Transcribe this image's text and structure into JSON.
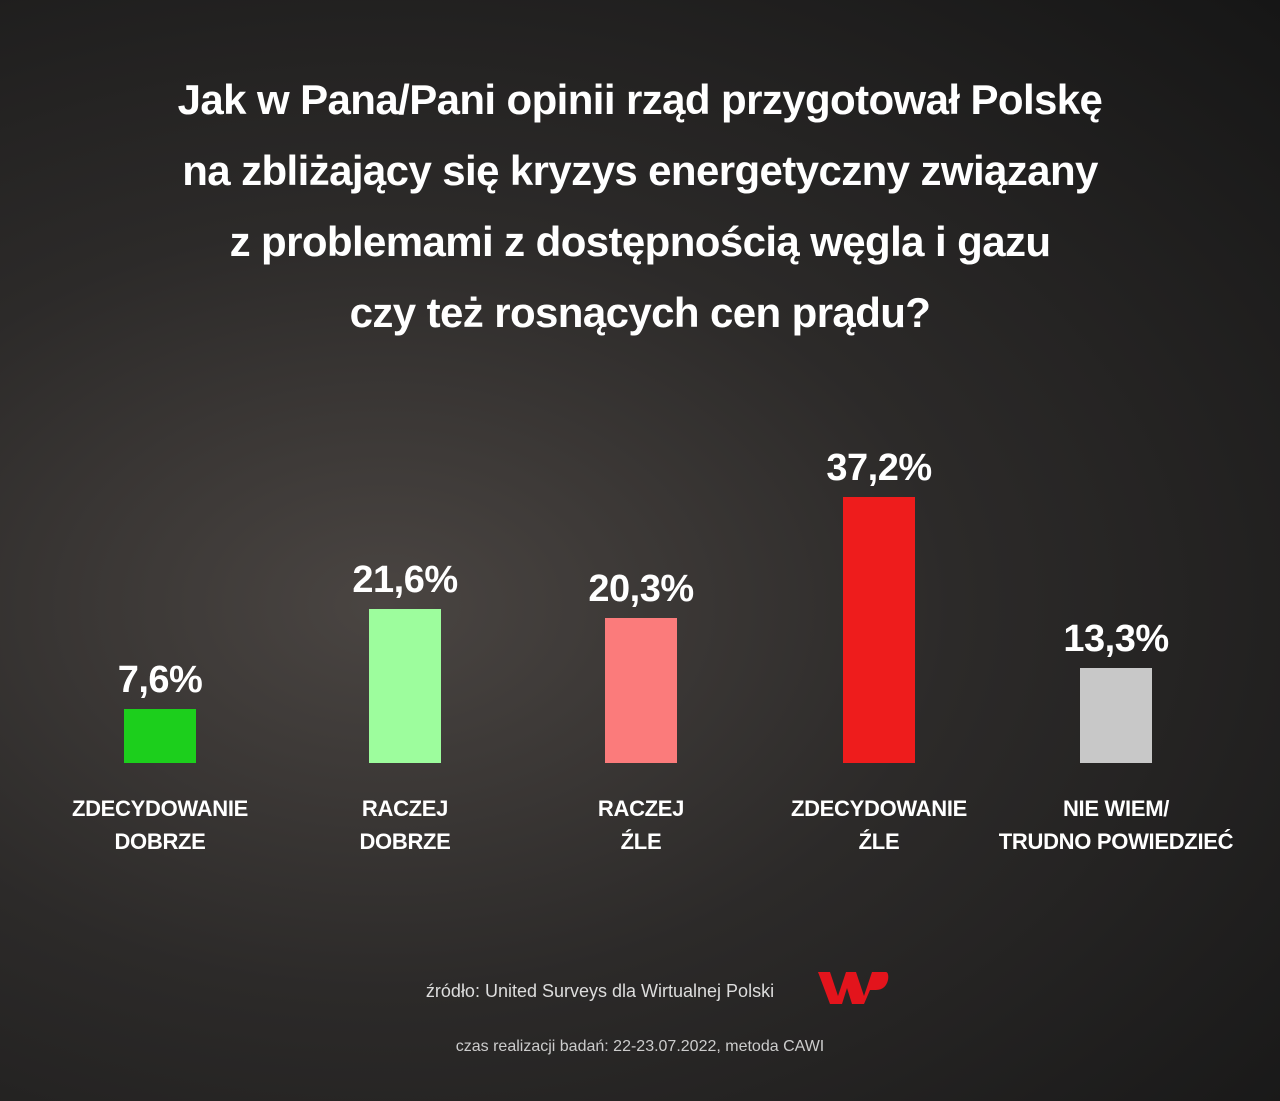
{
  "chart_data": {
    "type": "bar",
    "title": "Jak w Pana/Pani opinii rząd przygotował Polskę\nna zbliżający się kryzys energetyczny związany\nz problemami z dostępnością węgla i gazu\nczy też rosnących cen prądu?",
    "categories": [
      "ZDECYDOWANIE\nDOBRZE",
      "RACZEJ\nDOBRZE",
      "RACZEJ\nŹLE",
      "ZDECYDOWANIE\nŹLE",
      "NIE WIEM/\nTRUDNO POWIEDZIEĆ"
    ],
    "values": [
      7.6,
      21.6,
      20.3,
      37.2,
      13.3
    ],
    "value_labels": [
      "7,6%",
      "21,6%",
      "20,3%",
      "37,2%",
      "13,3%"
    ],
    "colors": [
      "#1ccf1c",
      "#9dfd9d",
      "#fb7b7b",
      "#ee1c1c",
      "#c8c8c8"
    ],
    "source": "źródło: United Surveys dla Wirtualnej Polski",
    "note": "czas realizacji badań: 22-23.07.2022, metoda CAWI"
  }
}
